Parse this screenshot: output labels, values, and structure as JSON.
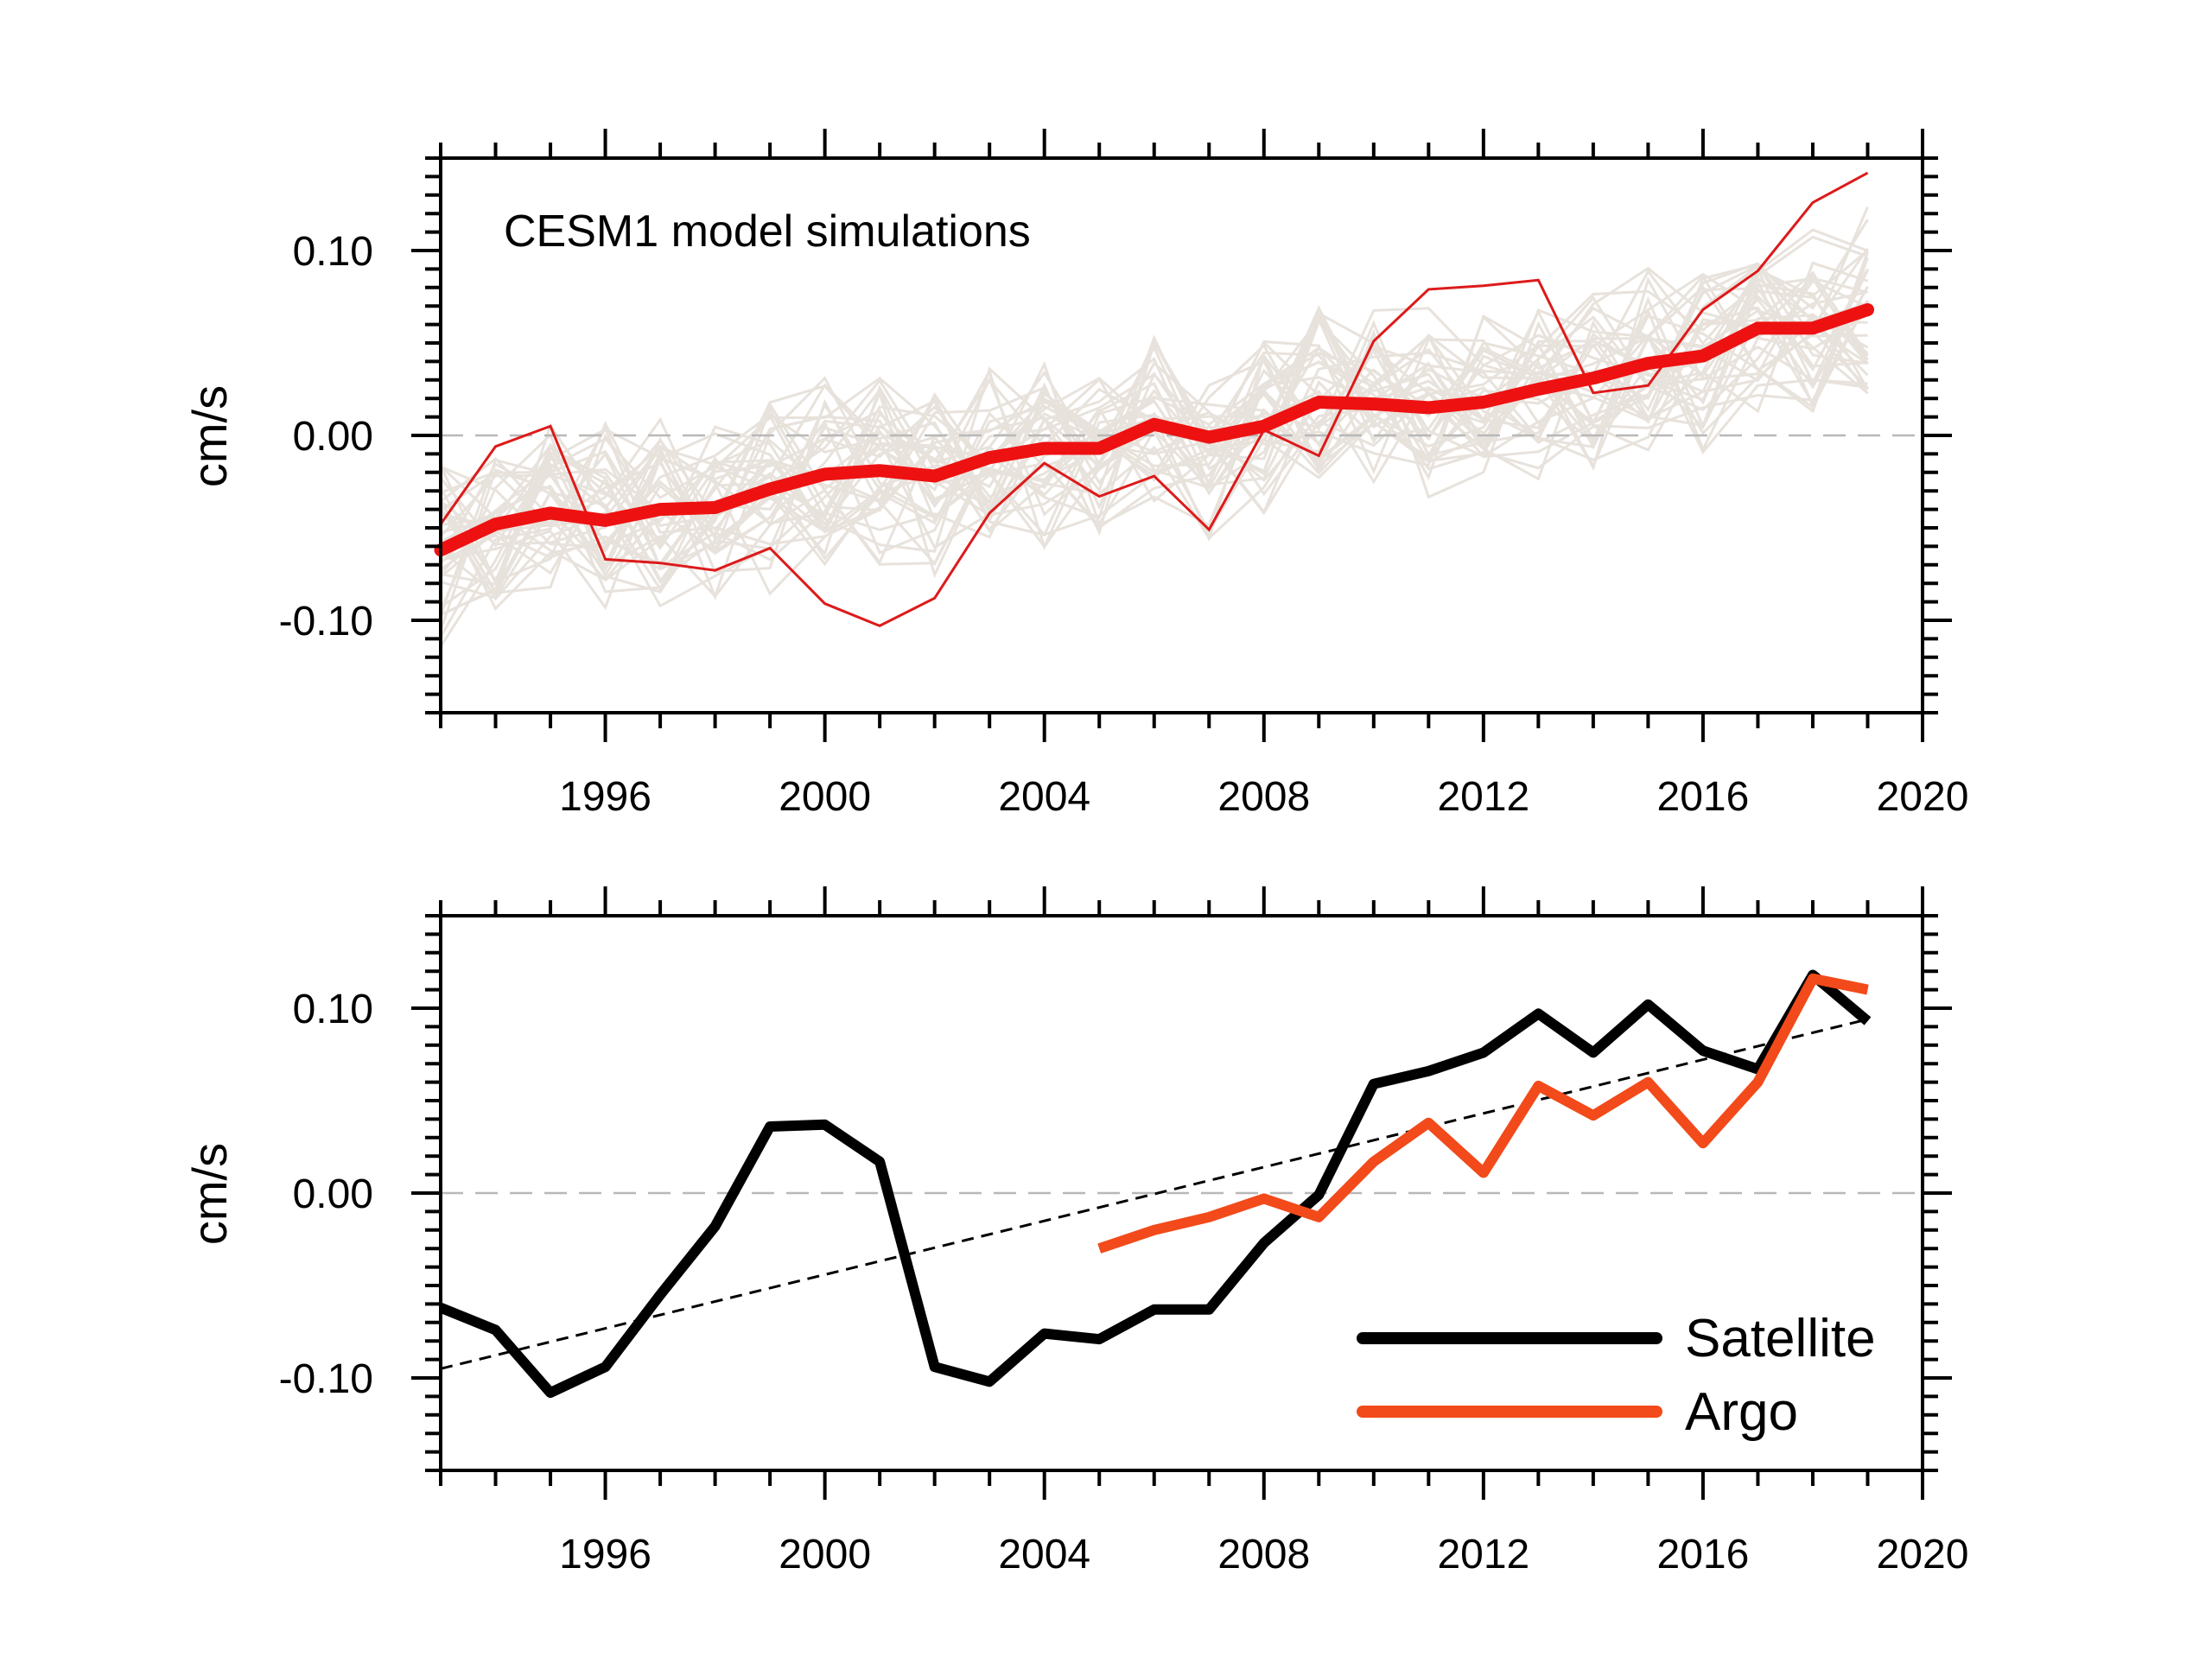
{
  "chart_data": [
    {
      "type": "line",
      "annotation": "CESM1 model simulations",
      "title": "",
      "xlabel": "",
      "ylabel": "cm/s",
      "xlim": [
        1993,
        2020
      ],
      "ylim": [
        -0.15,
        0.15
      ],
      "x_ticks": [
        1996,
        2000,
        2004,
        2008,
        2012,
        2016,
        2020
      ],
      "x_tick_labels": [
        "1996",
        "2000",
        "2004",
        "2008",
        "2012",
        "2016",
        "2020"
      ],
      "y_ticks": [
        -0.1,
        0.0,
        0.1
      ],
      "y_tick_labels": [
        "-0.10",
        "0.00",
        "0.10"
      ],
      "zero_line": "dashed gray",
      "grid": false,
      "colors": {
        "ensemble": "#e8e2dc",
        "mean": "#ee1111",
        "member": "#dd1a1a"
      },
      "series": [
        {
          "x": [
            1993,
            1994,
            1995,
            1996,
            1997,
            1998,
            1999,
            2000,
            2001,
            2002,
            2003,
            2004,
            2005,
            2006,
            2007,
            2008,
            2009,
            2010,
            2011,
            2012,
            2013,
            2014,
            2015,
            2016,
            2017,
            2018,
            2019
          ],
          "values": [
            -0.062,
            -0.048,
            -0.042,
            -0.046,
            -0.04,
            -0.039,
            -0.029,
            -0.021,
            -0.019,
            -0.022,
            -0.012,
            -0.007,
            -0.007,
            0.006,
            -0.001,
            0.005,
            0.018,
            0.017,
            0.015,
            0.018,
            0.025,
            0.031,
            0.039,
            0.043,
            0.058,
            0.058,
            0.068
          ]
        },
        {
          "x": [
            1993,
            1994,
            1995,
            1996,
            1997,
            1998,
            1999,
            2000,
            2001,
            2002,
            2003,
            2004,
            2005,
            2006,
            2007,
            2008,
            2009,
            2010,
            2011,
            2012,
            2013,
            2014,
            2015,
            2016,
            2017,
            2018,
            2019
          ],
          "values": [
            -0.048,
            -0.006,
            0.005,
            -0.067,
            -0.069,
            -0.073,
            -0.061,
            -0.091,
            -0.103,
            -0.088,
            -0.042,
            -0.015,
            -0.033,
            -0.022,
            -0.051,
            0.003,
            -0.011,
            0.051,
            0.079,
            0.081,
            0.084,
            0.023,
            0.027,
            0.068,
            0.089,
            0.126,
            0.142
          ]
        }
      ]
    },
    {
      "type": "line",
      "title": "",
      "xlabel": "",
      "ylabel": "cm/s",
      "xlim": [
        1993,
        2020
      ],
      "ylim": [
        -0.15,
        0.15
      ],
      "x_ticks": [
        1996,
        2000,
        2004,
        2008,
        2012,
        2016,
        2020
      ],
      "x_tick_labels": [
        "1996",
        "2000",
        "2004",
        "2008",
        "2012",
        "2016",
        "2020"
      ],
      "y_ticks": [
        -0.1,
        0.0,
        0.1
      ],
      "y_tick_labels": [
        "-0.10",
        "0.00",
        "0.10"
      ],
      "zero_line": "dashed gray",
      "grid": false,
      "legend_position": "bottom-right",
      "series": [
        {
          "name": "Satellite",
          "color": "#000000",
          "x": [
            1993,
            1994,
            1995,
            1996,
            1997,
            1998,
            1999,
            2000,
            2001,
            2002,
            2003,
            2004,
            2005,
            2006,
            2007,
            2008,
            2009,
            2010,
            2011,
            2012,
            2013,
            2014,
            2015,
            2016,
            2017,
            2018,
            2019
          ],
          "values": [
            -0.062,
            -0.074,
            -0.108,
            -0.094,
            -0.055,
            -0.018,
            0.036,
            0.037,
            0.017,
            -0.094,
            -0.102,
            -0.076,
            -0.079,
            -0.063,
            -0.063,
            -0.027,
            -0.001,
            0.059,
            0.066,
            0.076,
            0.097,
            0.076,
            0.102,
            0.077,
            0.067,
            0.118,
            0.093
          ]
        },
        {
          "name": "Argo",
          "color": "#f24a1a",
          "x": [
            2005,
            2006,
            2007,
            2008,
            2009,
            2010,
            2011,
            2012,
            2013,
            2014,
            2015,
            2016,
            2017,
            2018,
            2019
          ],
          "values": [
            -0.03,
            -0.02,
            -0.013,
            -0.003,
            -0.013,
            0.017,
            0.038,
            0.011,
            0.058,
            0.042,
            0.06,
            0.027,
            0.06,
            0.116,
            0.11
          ]
        }
      ],
      "trend_line": {
        "style": "dashed black",
        "x": [
          1993,
          2019
        ],
        "values": [
          -0.095,
          0.094
        ]
      }
    }
  ]
}
